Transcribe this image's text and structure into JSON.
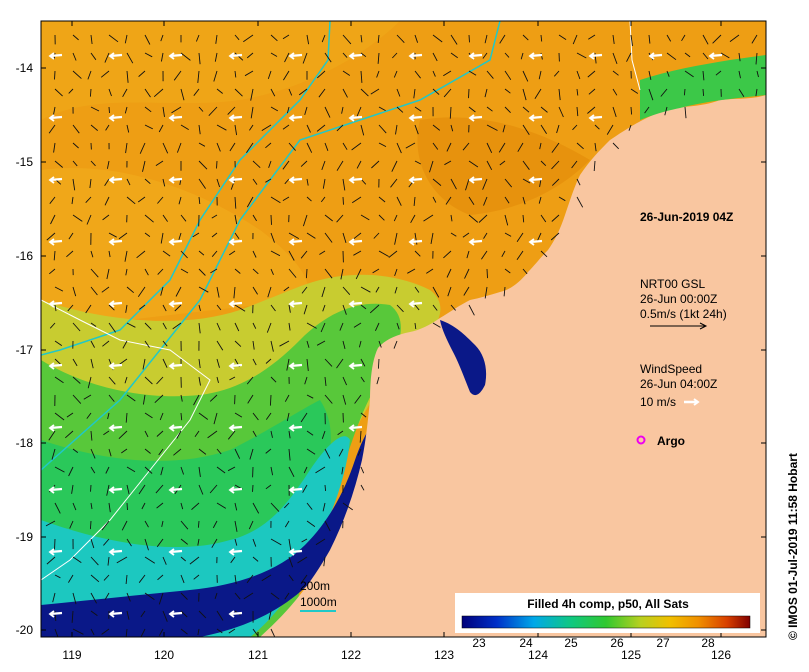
{
  "map": {
    "x_ticks": [
      "119",
      "120",
      "121",
      "122",
      "123",
      "124",
      "125",
      "126"
    ],
    "y_ticks": [
      "-14",
      "-15",
      "-16",
      "-17",
      "-18",
      "-19",
      "-20"
    ]
  },
  "annotations": {
    "datetime": "26-Jun-2019 04Z",
    "current_title": "NRT00 GSL",
    "current_time": "26-Jun 00:00Z",
    "current_scale": "0.5m/s (1kt 24h)",
    "wind_title": "WindSpeed",
    "wind_time": "26-Jun 04:00Z",
    "wind_scale": "10 m/s",
    "argo": "Argo",
    "depth_200": "200m",
    "depth_1000": "1000m"
  },
  "colorbar": {
    "title": "Filled 4h comp, p50, All Sats",
    "ticks": [
      "23",
      "24",
      "25",
      "26",
      "27",
      "28"
    ]
  },
  "credit": "© IMOS 01-Jul-2019 11:58 Hobart",
  "colors": {
    "land": "#f9c6a0",
    "warm": "#f0a010",
    "mid": "#b8d830",
    "cool": "#22c860",
    "cold": "#00b8e8",
    "deep": "#101890",
    "contour_1000": "#20c8c8",
    "contour_200": "#ffffff",
    "argo": "#ee00ee"
  }
}
